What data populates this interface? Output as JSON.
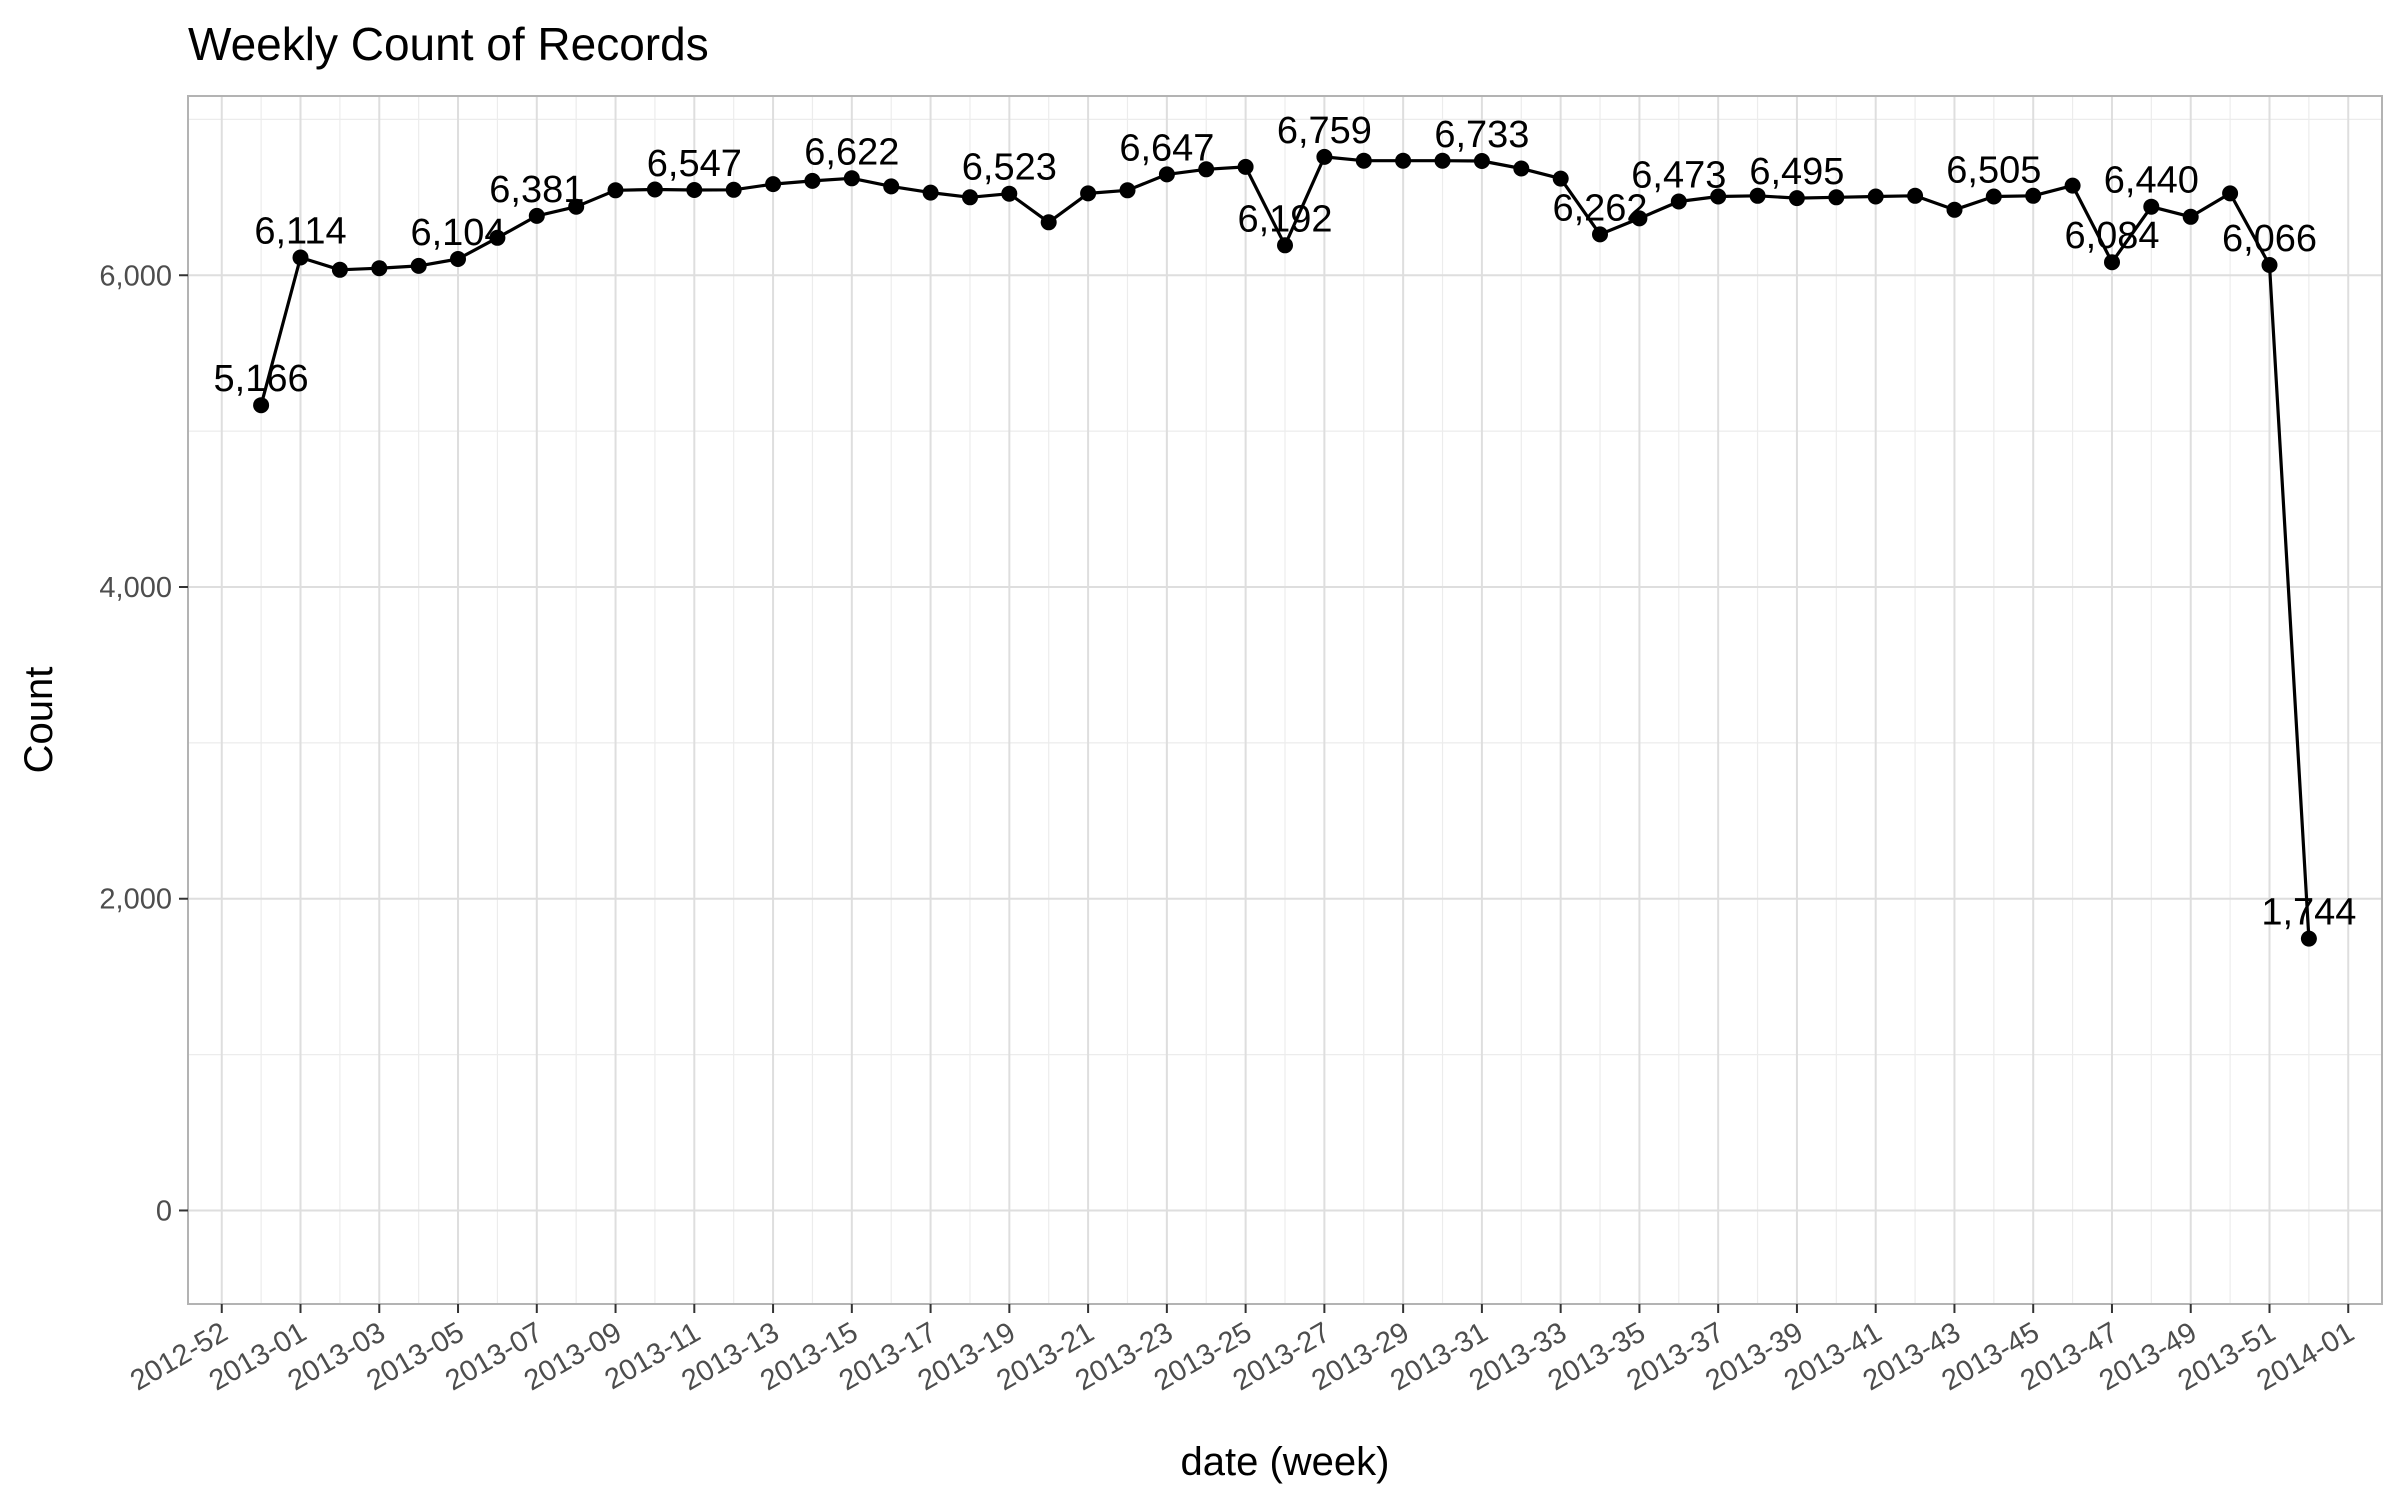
{
  "chart_data": {
    "type": "line",
    "title": "Weekly Count of Records",
    "xlabel": "date (week)",
    "ylabel": "Count",
    "ylim": [
      -600,
      7150
    ],
    "y_ticks": [
      0,
      2000,
      4000,
      6000
    ],
    "y_tick_labels": [
      "0",
      "2,000",
      "4,000",
      "6,000"
    ],
    "grid": true,
    "legend": "none",
    "colors": {
      "line": "#000000",
      "point": "#000000",
      "grid": "#dedede",
      "panel_border": "#b3b3b3",
      "tick_text": "#4d4d4d"
    },
    "x_ticks": [
      {
        "label": "2012-52",
        "date": "2012-12-24"
      },
      {
        "label": "2013-01",
        "date": "2013-01-07"
      },
      {
        "label": "2013-03",
        "date": "2013-01-21"
      },
      {
        "label": "2013-05",
        "date": "2013-02-04"
      },
      {
        "label": "2013-07",
        "date": "2013-02-18"
      },
      {
        "label": "2013-09",
        "date": "2013-03-04"
      },
      {
        "label": "2013-11",
        "date": "2013-03-18"
      },
      {
        "label": "2013-13",
        "date": "2013-04-01"
      },
      {
        "label": "2013-15",
        "date": "2013-04-15"
      },
      {
        "label": "2013-17",
        "date": "2013-04-29"
      },
      {
        "label": "2013-19",
        "date": "2013-05-13"
      },
      {
        "label": "2013-21",
        "date": "2013-05-27"
      },
      {
        "label": "2013-23",
        "date": "2013-06-10"
      },
      {
        "label": "2013-25",
        "date": "2013-06-24"
      },
      {
        "label": "2013-27",
        "date": "2013-07-08"
      },
      {
        "label": "2013-29",
        "date": "2013-07-22"
      },
      {
        "label": "2013-31",
        "date": "2013-08-05"
      },
      {
        "label": "2013-33",
        "date": "2013-08-19"
      },
      {
        "label": "2013-35",
        "date": "2013-09-02"
      },
      {
        "label": "2013-37",
        "date": "2013-09-16"
      },
      {
        "label": "2013-39",
        "date": "2013-09-30"
      },
      {
        "label": "2013-41",
        "date": "2013-10-14"
      },
      {
        "label": "2013-43",
        "date": "2013-10-28"
      },
      {
        "label": "2013-45",
        "date": "2013-11-11"
      },
      {
        "label": "2013-47",
        "date": "2013-11-25"
      },
      {
        "label": "2013-49",
        "date": "2013-12-09"
      },
      {
        "label": "2013-51",
        "date": "2013-12-23"
      },
      {
        "label": "2014-01",
        "date": "2014-01-06"
      }
    ],
    "x": [
      "2012-12-31",
      "2013-01-07",
      "2013-01-14",
      "2013-01-21",
      "2013-01-28",
      "2013-02-04",
      "2013-02-11",
      "2013-02-18",
      "2013-02-25",
      "2013-03-04",
      "2013-03-11",
      "2013-03-18",
      "2013-03-25",
      "2013-04-01",
      "2013-04-08",
      "2013-04-15",
      "2013-04-22",
      "2013-04-29",
      "2013-05-06",
      "2013-05-13",
      "2013-05-20",
      "2013-05-27",
      "2013-06-03",
      "2013-06-10",
      "2013-06-17",
      "2013-06-24",
      "2013-07-01",
      "2013-07-08",
      "2013-07-15",
      "2013-07-22",
      "2013-07-29",
      "2013-08-05",
      "2013-08-12",
      "2013-08-19",
      "2013-08-26",
      "2013-09-02",
      "2013-09-09",
      "2013-09-16",
      "2013-09-23",
      "2013-09-30",
      "2013-10-07",
      "2013-10-14",
      "2013-10-21",
      "2013-10-28",
      "2013-11-04",
      "2013-11-11",
      "2013-11-18",
      "2013-11-25",
      "2013-12-02",
      "2013-12-09",
      "2013-12-16",
      "2013-12-23",
      "2013-12-30"
    ],
    "series": [
      {
        "values": [
          5166,
          6114,
          6035,
          6045,
          6060,
          6104,
          6240,
          6381,
          6440,
          6545,
          6550,
          6547,
          6548,
          6585,
          6605,
          6622,
          6570,
          6530,
          6500,
          6523,
          6340,
          6525,
          6545,
          6647,
          6680,
          6695,
          6192,
          6759,
          6735,
          6735,
          6735,
          6733,
          6685,
          6620,
          6262,
          6365,
          6473,
          6505,
          6510,
          6495,
          6500,
          6505,
          6510,
          6420,
          6505,
          6510,
          6575,
          6084,
          6440,
          6375,
          6525,
          6066,
          1744
        ],
        "labels": [
          "5,166",
          "6,114",
          "",
          "",
          "",
          "6,104",
          "",
          "6,381",
          "",
          "",
          "",
          "6,547",
          "",
          "",
          "",
          "6,622",
          "",
          "",
          "",
          "6,523",
          "",
          "",
          "",
          "6,647",
          "",
          "",
          "6,192",
          "6,759",
          "",
          "",
          "",
          "6,733",
          "",
          "",
          "6,262",
          "",
          "6,473",
          "",
          "",
          "6,495",
          "",
          "",
          "",
          "",
          "6,505",
          "",
          "",
          "6,084",
          "6,440",
          "",
          "",
          "6,066",
          "1,744"
        ]
      }
    ]
  }
}
